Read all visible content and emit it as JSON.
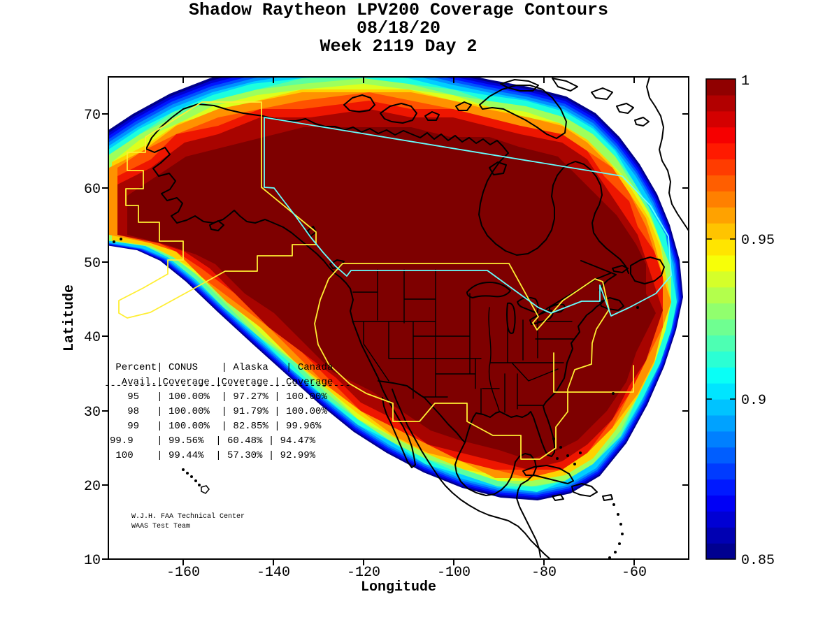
{
  "title": {
    "line1": "Shadow Raytheon LPV200 Coverage Contours",
    "line2": "08/18/20",
    "line3": "Week 2119 Day 2"
  },
  "axes": {
    "x": {
      "label": "Longitude",
      "tick_labels": [
        "-160",
        "-140",
        "-120",
        "-100",
        "-80",
        "-60"
      ]
    },
    "y": {
      "label": "Latitude",
      "tick_labels": [
        "10",
        "20",
        "30",
        "40",
        "50",
        "60",
        "70"
      ]
    }
  },
  "colorbar": {
    "tick_labels": [
      "1",
      "0.95",
      "0.9",
      "0.85"
    ]
  },
  "overlay_table": {
    "lines": [
      " Percent| CONUS    | Alaska   | Canada",
      "  Avail.|Coverage |Coverage | Coverage",
      "   95   | 100.00%  | 97.27% | 100.00%",
      "   98   | 100.00%  | 91.79% | 100.00%",
      "   99   | 100.00%  | 82.85% | 99.96%",
      "99.9    | 99.56%  | 60.48% | 94.47%",
      " 100    | 99.44%  | 57.30% | 92.99%"
    ],
    "separator": "------------------------------------------"
  },
  "credit": {
    "line1": "W.J.H. FAA Technical Center",
    "line2": "WAAS Test Team"
  },
  "chart_data": {
    "type": "heatmap",
    "subtype": "filled-contour-coverage-map",
    "title": "Shadow Raytheon LPV200 Coverage Contours",
    "date": "08/18/20",
    "gps_week": "Week 2119 Day 2",
    "xlabel": "Longitude",
    "ylabel": "Latitude",
    "xlim": [
      -177,
      -48
    ],
    "ylim": [
      10,
      75
    ],
    "xticks": [
      -160,
      -140,
      -120,
      -100,
      -80,
      -60
    ],
    "yticks": [
      10,
      20,
      30,
      40,
      50,
      60,
      70
    ],
    "colorbar": {
      "min": 0.85,
      "max": 1.0,
      "ticks": [
        1,
        0.95,
        0.9,
        0.85
      ],
      "colormap": "jet",
      "position": "right"
    },
    "contour_levels": [
      0.85,
      0.86,
      0.87,
      0.88,
      0.89,
      0.9,
      0.91,
      0.92,
      0.93,
      0.94,
      0.95,
      0.96,
      0.97,
      0.98,
      0.99,
      1.0
    ],
    "palette": {
      "jet_stops": [
        [
          0,
          "#00007F"
        ],
        [
          0.125,
          "#0000FF"
        ],
        [
          0.375,
          "#00FFFF"
        ],
        [
          0.625,
          "#FFFF00"
        ],
        [
          0.875,
          "#FF0000"
        ],
        [
          1,
          "#7F0000"
        ]
      ],
      "bands": [
        "#000088",
        "#0000D2",
        "#0016FF",
        "#0052FF",
        "#0092FF",
        "#00CEFF",
        "#1CFFDE",
        "#5CFF9E",
        "#9EFF5C",
        "#DEFF1C",
        "#FFD200",
        "#FF9200",
        "#FF5200",
        "#EE1600"
      ],
      "inner_zone": "#A80400",
      "core": "#7E0000",
      "coastline": "#000000",
      "conus_alaska_boundary": "#FFEE33",
      "canada_boundary": "#66FFFF",
      "background": "#FFFFFF"
    },
    "availability_table": {
      "columns": [
        "Percent Avail.",
        "CONUS Coverage",
        "Alaska Coverage",
        "Canada Coverage"
      ],
      "rows": [
        [
          "95",
          "100.00%",
          "97.27%",
          "100.00%"
        ],
        [
          "98",
          "100.00%",
          "91.79%",
          "100.00%"
        ],
        [
          "99",
          "100.00%",
          "82.85%",
          "99.96%"
        ],
        [
          "99.9",
          "99.56%",
          "60.48%",
          "94.47%"
        ],
        [
          "100",
          "99.44%",
          "57.30%",
          "92.99%"
        ]
      ]
    },
    "credit": [
      "W.J.H. FAA Technical Center",
      "WAAS Test Team"
    ]
  }
}
